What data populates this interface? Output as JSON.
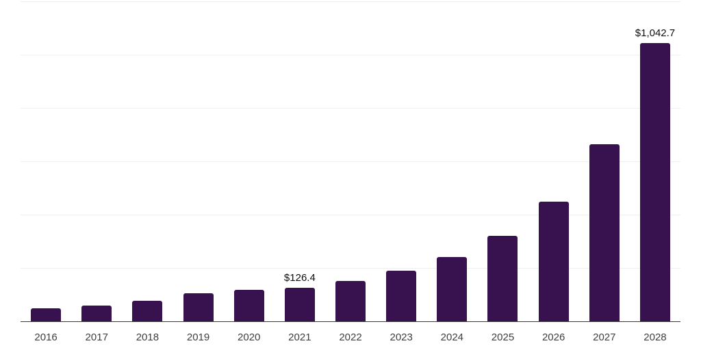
{
  "page": {
    "background": "#ffffff"
  },
  "chart_data": {
    "type": "bar",
    "title": "",
    "xlabel": "",
    "ylabel": "",
    "categories": [
      "2016",
      "2017",
      "2018",
      "2019",
      "2020",
      "2021",
      "2022",
      "2023",
      "2024",
      "2025",
      "2026",
      "2027",
      "2028"
    ],
    "values": [
      49,
      60,
      77,
      105,
      119,
      126.4,
      151,
      190,
      241,
      320,
      448,
      665,
      1042.7
    ],
    "data_labels": [
      "",
      "",
      "",
      "",
      "",
      "$126.4",
      "",
      "",
      "",
      "",
      "",
      "",
      "$1,042.7"
    ],
    "ylim": [
      0,
      1200
    ],
    "gridline_values": [
      200,
      400,
      600,
      800,
      1000,
      1200
    ],
    "grid": "horizontal-only",
    "y_tick_labels": "none",
    "legend": "none",
    "colors": {
      "bar": "#38114f",
      "grid_line": "#efefef",
      "axis_line": "#383838",
      "tick_label": "#3d3d3d",
      "data_label": "#0e0e0e"
    }
  }
}
